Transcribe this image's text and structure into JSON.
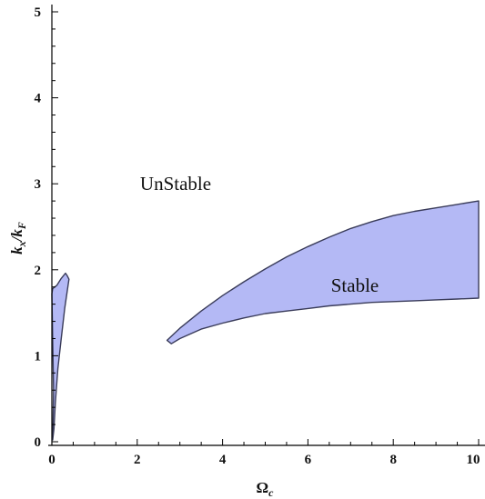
{
  "chart_data": {
    "type": "area",
    "title": "",
    "xlabel": "Ω",
    "xlabel_sub": "c",
    "ylabel_parts": [
      "k",
      "x",
      "/",
      "k",
      "F"
    ],
    "xlim": [
      0,
      10
    ],
    "ylim": [
      0,
      5
    ],
    "xticks": [
      0,
      2,
      4,
      6,
      8,
      10
    ],
    "yticks": [
      0,
      1,
      2,
      3,
      4,
      5
    ],
    "grid": false,
    "fill_color": "#b4b9f5",
    "edge_color": "#3a3c5a",
    "annotations": [
      {
        "text": "UnStable",
        "x": 2.9,
        "y": 3.0
      },
      {
        "text": "Stable",
        "x": 7.1,
        "y": 1.82
      }
    ],
    "regions": [
      {
        "name": "small-region",
        "polygon": [
          [
            0.02,
            0.02
          ],
          [
            0.04,
            0.6
          ],
          [
            0.0,
            1.72
          ],
          [
            0.02,
            1.78
          ],
          [
            0.12,
            1.82
          ],
          [
            0.22,
            1.9
          ],
          [
            0.32,
            1.96
          ],
          [
            0.36,
            1.93
          ],
          [
            0.4,
            1.89
          ],
          [
            0.3,
            1.55
          ],
          [
            0.22,
            1.2
          ],
          [
            0.14,
            0.85
          ],
          [
            0.08,
            0.45
          ],
          [
            0.05,
            0.15
          ],
          [
            0.02,
            0.02
          ]
        ]
      },
      {
        "name": "large-region",
        "upper": [
          [
            2.7,
            1.18
          ],
          [
            3.0,
            1.32
          ],
          [
            3.5,
            1.52
          ],
          [
            4.0,
            1.7
          ],
          [
            4.5,
            1.86
          ],
          [
            5.0,
            2.01
          ],
          [
            5.5,
            2.15
          ],
          [
            6.0,
            2.27
          ],
          [
            6.5,
            2.38
          ],
          [
            7.0,
            2.48
          ],
          [
            7.5,
            2.56
          ],
          [
            8.0,
            2.63
          ],
          [
            8.5,
            2.68
          ],
          [
            9.0,
            2.72
          ],
          [
            9.5,
            2.76
          ],
          [
            10.0,
            2.8
          ]
        ],
        "lower": [
          [
            2.8,
            1.14
          ],
          [
            3.0,
            1.2
          ],
          [
            3.5,
            1.31
          ],
          [
            4.0,
            1.38
          ],
          [
            4.5,
            1.44
          ],
          [
            5.0,
            1.49
          ],
          [
            5.5,
            1.52
          ],
          [
            6.0,
            1.55
          ],
          [
            6.5,
            1.58
          ],
          [
            7.0,
            1.6
          ],
          [
            7.5,
            1.62
          ],
          [
            8.0,
            1.63
          ],
          [
            8.5,
            1.64
          ],
          [
            9.0,
            1.65
          ],
          [
            9.5,
            1.66
          ],
          [
            10.0,
            1.67
          ]
        ]
      }
    ]
  }
}
